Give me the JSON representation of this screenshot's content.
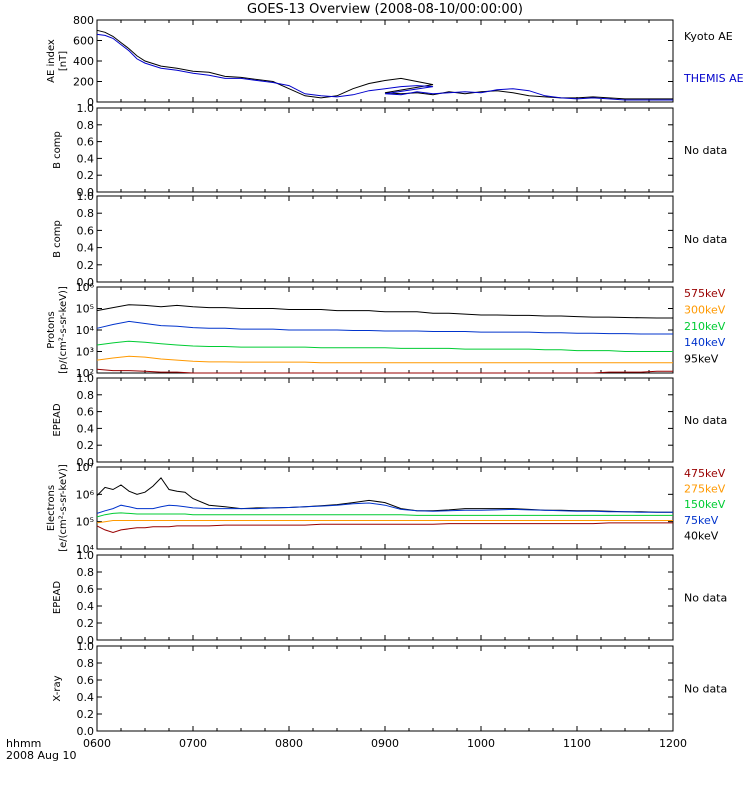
{
  "title": "GOES-13 Overview (2008-08-10/00:00:00)",
  "time_axis": {
    "tick_labels": [
      "0600",
      "0700",
      "0800",
      "0900",
      "1000",
      "1100",
      "1200"
    ],
    "label_left_1": "hhmm",
    "label_left_2": "2008 Aug 10"
  },
  "panels": [
    {
      "id": "ae",
      "ylabel": [
        "AE index",
        "[nT]"
      ],
      "ticks": [
        "0",
        "200",
        "400",
        "600",
        "800"
      ],
      "legend": [
        {
          "text": "Kyoto AE",
          "color": "#000000"
        },
        {
          "text": "THEMIS AE",
          "color": "#0000cc"
        }
      ]
    },
    {
      "id": "bcomp1",
      "ylabel": [
        "B comp"
      ],
      "ticks": [
        "0.0",
        "0.2",
        "0.4",
        "0.6",
        "0.8",
        "1.0"
      ],
      "nodata": "No data"
    },
    {
      "id": "bcomp2",
      "ylabel": [
        "B comp"
      ],
      "ticks": [
        "0.0",
        "0.2",
        "0.4",
        "0.6",
        "0.8",
        "1.0"
      ],
      "nodata": "No data"
    },
    {
      "id": "protons",
      "ylabel": [
        "Protons",
        "[p/(cm²-s-sr-keV)]"
      ],
      "ticks": [
        "10²",
        "10³",
        "10⁴",
        "10⁵",
        "10⁶"
      ],
      "legend": [
        {
          "text": "575keV",
          "color": "#990000"
        },
        {
          "text": "300keV",
          "color": "#ff9900"
        },
        {
          "text": "210keV",
          "color": "#00cc33"
        },
        {
          "text": "140keV",
          "color": "#0033cc"
        },
        {
          "text": "95keV",
          "color": "#000000"
        }
      ]
    },
    {
      "id": "epead1",
      "ylabel": [
        "EPEAD"
      ],
      "ticks": [
        "0.0",
        "0.2",
        "0.4",
        "0.6",
        "0.8",
        "1.0"
      ],
      "nodata": "No data"
    },
    {
      "id": "electrons",
      "ylabel": [
        "Electrons",
        "[e/(cm²-s-sr-keV)]"
      ],
      "ticks": [
        "10⁴",
        "10⁵",
        "10⁶",
        "10⁷"
      ],
      "legend": [
        {
          "text": "475keV",
          "color": "#990000"
        },
        {
          "text": "275keV",
          "color": "#ff9900"
        },
        {
          "text": "150keV",
          "color": "#00cc33"
        },
        {
          "text": "75keV",
          "color": "#0033cc"
        },
        {
          "text": "40keV",
          "color": "#000000"
        }
      ]
    },
    {
      "id": "epead2",
      "ylabel": [
        "EPEAD"
      ],
      "ticks": [
        "0.0",
        "0.2",
        "0.4",
        "0.6",
        "0.8",
        "1.0"
      ],
      "nodata": "No data"
    },
    {
      "id": "xray",
      "ylabel": [
        "X-ray"
      ],
      "ticks": [
        "0.0",
        "0.2",
        "0.4",
        "0.6",
        "0.8",
        "1.0"
      ],
      "nodata": "No data"
    }
  ],
  "chart_data": [
    {
      "type": "line",
      "panel": "ae",
      "x": [
        600,
        605,
        610,
        615,
        620,
        625,
        630,
        640,
        650,
        700,
        710,
        720,
        730,
        740,
        750,
        800,
        810,
        820,
        830,
        840,
        850,
        860,
        870,
        880,
        890,
        900,
        910,
        920,
        930,
        940,
        950,
        1000,
        1010,
        1020,
        1030,
        1040,
        1050,
        1100,
        1110,
        1120,
        1130,
        1140,
        1150,
        1200
      ],
      "ylim": [
        0,
        800
      ],
      "series": [
        {
          "name": "Kyoto AE",
          "color": "#000000",
          "values": [
            700,
            680,
            640,
            580,
            520,
            450,
            400,
            350,
            330,
            300,
            290,
            250,
            240,
            220,
            200,
            130,
            60,
            40,
            60,
            130,
            180,
            210,
            230,
            200,
            170,
            90,
            80,
            90,
            70,
            100,
            80,
            100,
            110,
            90,
            60,
            50,
            40,
            40,
            50,
            40,
            30,
            30,
            30,
            30
          ]
        },
        {
          "name": "THEMIS AE",
          "color": "#0000cc",
          "values": [
            660,
            650,
            620,
            560,
            500,
            420,
            380,
            330,
            310,
            280,
            260,
            230,
            230,
            210,
            190,
            160,
            80,
            60,
            50,
            70,
            110,
            130,
            150,
            160,
            150,
            80,
            70,
            100,
            80,
            90,
            100,
            90,
            120,
            130,
            110,
            60,
            40,
            30,
            40,
            30,
            20,
            20,
            20,
            20
          ]
        }
      ]
    },
    {
      "type": "line",
      "panel": "protons",
      "x": [
        600,
        610,
        620,
        630,
        640,
        650,
        700,
        710,
        720,
        730,
        740,
        750,
        800,
        810,
        820,
        830,
        840,
        850,
        900,
        910,
        920,
        930,
        940,
        950,
        1000,
        1010,
        1020,
        1030,
        1040,
        1050,
        1100,
        1110,
        1120,
        1130,
        1140,
        1150,
        1200
      ],
      "ylim": [
        100,
        1000000
      ],
      "log_scale": true,
      "series": [
        {
          "name": "95keV",
          "color": "#000000",
          "values": [
            80000,
            110000,
            150000,
            140000,
            120000,
            140000,
            120000,
            110000,
            110000,
            100000,
            100000,
            100000,
            90000,
            90000,
            90000,
            80000,
            80000,
            80000,
            70000,
            70000,
            70000,
            60000,
            60000,
            55000,
            50000,
            50000,
            48000,
            48000,
            45000,
            45000,
            42000,
            40000,
            40000,
            38000,
            37000,
            36000,
            36000
          ]
        },
        {
          "name": "140keV",
          "color": "#0033cc",
          "values": [
            12000,
            18000,
            25000,
            20000,
            16000,
            15000,
            13000,
            12000,
            12000,
            11000,
            11000,
            11000,
            10000,
            10000,
            10000,
            10000,
            9500,
            9500,
            9000,
            9000,
            9000,
            8500,
            8500,
            8500,
            8000,
            8000,
            8000,
            8000,
            7500,
            7500,
            7000,
            7000,
            6800,
            6800,
            6500,
            6500,
            6500
          ]
        },
        {
          "name": "210keV",
          "color": "#00cc33",
          "values": [
            2000,
            2500,
            3000,
            2700,
            2300,
            2000,
            1800,
            1700,
            1700,
            1600,
            1600,
            1600,
            1600,
            1600,
            1500,
            1500,
            1500,
            1500,
            1500,
            1400,
            1400,
            1400,
            1400,
            1300,
            1300,
            1300,
            1300,
            1300,
            1200,
            1200,
            1100,
            1100,
            1100,
            1000,
            1000,
            1000,
            1000
          ]
        },
        {
          "name": "300keV",
          "color": "#ff9900",
          "values": [
            400,
            500,
            600,
            550,
            450,
            400,
            350,
            330,
            330,
            320,
            320,
            320,
            320,
            320,
            300,
            300,
            300,
            300,
            300,
            300,
            300,
            300,
            300,
            300,
            300,
            300,
            300,
            300,
            300,
            300,
            300,
            300,
            300,
            300,
            300,
            300,
            300
          ]
        },
        {
          "name": "575keV",
          "color": "#990000",
          "values": [
            150,
            130,
            130,
            120,
            110,
            110,
            100,
            100,
            100,
            100,
            100,
            100,
            100,
            100,
            100,
            100,
            100,
            100,
            100,
            100,
            100,
            100,
            100,
            100,
            100,
            100,
            100,
            100,
            100,
            100,
            100,
            100,
            110,
            110,
            110,
            120,
            120
          ]
        }
      ]
    },
    {
      "type": "line",
      "panel": "electrons",
      "x": [
        600,
        605,
        610,
        615,
        620,
        625,
        630,
        635,
        640,
        645,
        650,
        655,
        700,
        710,
        720,
        730,
        740,
        750,
        800,
        810,
        820,
        830,
        840,
        850,
        900,
        910,
        920,
        930,
        940,
        950,
        1000,
        1010,
        1020,
        1030,
        1040,
        1050,
        1100,
        1110,
        1120,
        1130,
        1140,
        1150,
        1200
      ],
      "ylim": [
        10000,
        10000000
      ],
      "log_scale": true,
      "series": [
        {
          "name": "40keV",
          "color": "#000000",
          "values": [
            900000,
            1800000,
            1500000,
            2200000,
            1300000,
            1000000,
            1200000,
            2000000,
            4000000,
            1500000,
            1300000,
            1200000,
            700000,
            400000,
            350000,
            300000,
            320000,
            320000,
            330000,
            350000,
            380000,
            420000,
            500000,
            600000,
            500000,
            300000,
            250000,
            250000,
            270000,
            300000,
            300000,
            300000,
            300000,
            280000,
            260000,
            260000,
            250000,
            250000,
            240000,
            230000,
            230000,
            220000,
            220000
          ]
        },
        {
          "name": "75keV",
          "color": "#0033cc",
          "values": [
            200000,
            250000,
            300000,
            400000,
            350000,
            300000,
            300000,
            300000,
            350000,
            400000,
            380000,
            350000,
            320000,
            300000,
            300000,
            300000,
            300000,
            320000,
            330000,
            350000,
            370000,
            400000,
            450000,
            480000,
            400000,
            280000,
            250000,
            240000,
            250000,
            260000,
            260000,
            270000,
            280000,
            270000,
            260000,
            250000,
            240000,
            240000,
            230000,
            230000,
            220000,
            220000,
            220000
          ]
        },
        {
          "name": "150keV",
          "color": "#00cc33",
          "values": [
            150000,
            180000,
            200000,
            210000,
            200000,
            190000,
            190000,
            190000,
            190000,
            190000,
            190000,
            190000,
            180000,
            180000,
            180000,
            180000,
            180000,
            180000,
            180000,
            180000,
            180000,
            180000,
            180000,
            180000,
            180000,
            180000,
            170000,
            170000,
            170000,
            170000,
            170000,
            170000,
            170000,
            170000,
            170000,
            170000,
            170000,
            170000,
            170000,
            170000,
            170000,
            170000,
            170000
          ]
        },
        {
          "name": "275keV",
          "color": "#ff9900",
          "values": [
            90000,
            100000,
            110000,
            110000,
            110000,
            110000,
            110000,
            110000,
            110000,
            110000,
            110000,
            110000,
            110000,
            110000,
            110000,
            110000,
            110000,
            110000,
            110000,
            110000,
            110000,
            110000,
            110000,
            110000,
            110000,
            110000,
            110000,
            110000,
            110000,
            110000,
            110000,
            110000,
            110000,
            110000,
            110000,
            110000,
            110000,
            110000,
            110000,
            110000,
            110000,
            110000,
            110000
          ]
        },
        {
          "name": "475keV",
          "color": "#990000",
          "values": [
            70000,
            50000,
            40000,
            50000,
            55000,
            60000,
            60000,
            65000,
            65000,
            65000,
            70000,
            70000,
            70000,
            70000,
            75000,
            75000,
            75000,
            75000,
            75000,
            75000,
            80000,
            80000,
            80000,
            80000,
            80000,
            80000,
            80000,
            80000,
            85000,
            85000,
            85000,
            85000,
            85000,
            85000,
            85000,
            85000,
            85000,
            85000,
            90000,
            90000,
            90000,
            90000,
            90000
          ]
        }
      ]
    }
  ]
}
